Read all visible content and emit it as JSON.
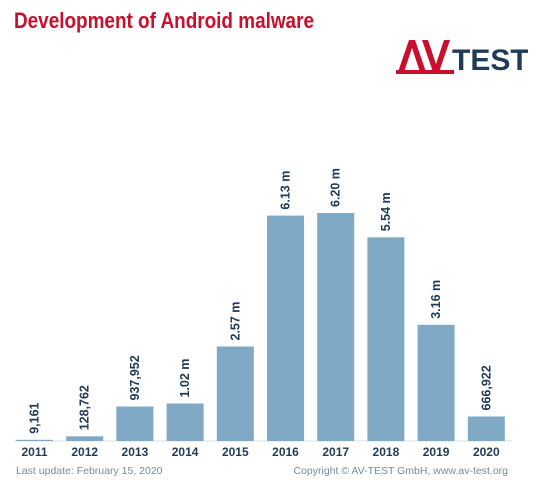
{
  "header": {
    "title": "Development of Android malware",
    "logo_text": "AV-TEST"
  },
  "colors": {
    "title": "#c8102e",
    "bar": "#7fa9c4",
    "label": "#1f3b57",
    "logo_red": "#c8102e",
    "logo_blue": "#1f3b57"
  },
  "chart_data": {
    "type": "bar",
    "title": "Development of Android malware",
    "xlabel": "",
    "ylabel": "",
    "categories": [
      "2011",
      "2012",
      "2013",
      "2014",
      "2015",
      "2016",
      "2017",
      "2018",
      "2019",
      "2020"
    ],
    "values": [
      9161,
      128762,
      937952,
      1020000,
      2570000,
      6130000,
      6200000,
      5540000,
      3160000,
      666922
    ],
    "data_labels": [
      "9,161",
      "128,762",
      "937,952",
      "1.02 m",
      "2.57 m",
      "6.13 m",
      "6.20 m",
      "5.54 m",
      "3.16 m",
      "666,922"
    ],
    "ylim": [
      0,
      6200000
    ],
    "grid": false,
    "legend": "none"
  },
  "footer": {
    "left": "Last update: February 15, 2020",
    "right": "Copyright © AV-TEST GmbH, www.av-test.org"
  }
}
